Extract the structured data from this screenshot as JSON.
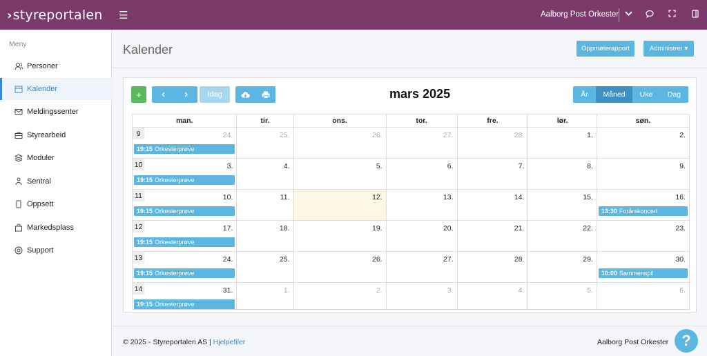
{
  "app": {
    "logo_text": "styreportalen",
    "hamburger": "☰"
  },
  "topbar": {
    "org_name": "Aalborg Post Orkester",
    "dropdown_icon": "chevron-down-icon",
    "icons": [
      "chat-icon",
      "fullscreen-icon",
      "panel-icon"
    ]
  },
  "sidebar": {
    "heading": "Meny",
    "items": [
      {
        "label": "Personer",
        "icon": "users-icon",
        "active": false
      },
      {
        "label": "Kalender",
        "icon": "calendar-icon",
        "active": true
      },
      {
        "label": "Meldingssenter",
        "icon": "envelope-icon",
        "active": false
      },
      {
        "label": "Styrearbeid",
        "icon": "briefcase-icon",
        "active": false
      },
      {
        "label": "Moduler",
        "icon": "layers-icon",
        "active": false
      },
      {
        "label": "Sentral",
        "icon": "network-icon",
        "active": false
      },
      {
        "label": "Oppsett",
        "icon": "mobile-icon",
        "active": false
      },
      {
        "label": "Markedsplass",
        "icon": "shopping-bag-icon",
        "active": false
      },
      {
        "label": "Support",
        "icon": "lifebuoy-icon",
        "active": false
      }
    ]
  },
  "header": {
    "title": "Kalender",
    "attendance_label": "Oppmøterapport",
    "admin_label": "Administrer ▾"
  },
  "toolbar": {
    "add_label": "+",
    "prev_label": "‹",
    "next_label": "›",
    "today_label": "Idag",
    "title": "mars 2025"
  },
  "views": [
    {
      "label": "År",
      "active": false
    },
    {
      "label": "Måned",
      "active": true
    },
    {
      "label": "Uke",
      "active": false
    },
    {
      "label": "Dag",
      "active": false
    }
  ],
  "calendar": {
    "weekdays": [
      "man.",
      "tir.",
      "ons.",
      "tor.",
      "fre.",
      "lør.",
      "søn."
    ],
    "weeks": [
      {
        "week": "9",
        "days": [
          {
            "d": "24.",
            "other": true,
            "event": {
              "time": "19:15",
              "title": "Orkesterprøve"
            }
          },
          {
            "d": "25.",
            "other": true
          },
          {
            "d": "26.",
            "other": true
          },
          {
            "d": "27.",
            "other": true
          },
          {
            "d": "28.",
            "other": true
          },
          {
            "d": "1."
          },
          {
            "d": "2."
          }
        ]
      },
      {
        "week": "10",
        "days": [
          {
            "d": "3.",
            "event": {
              "time": "19:15",
              "title": "Orkesterprøve"
            }
          },
          {
            "d": "4."
          },
          {
            "d": "5."
          },
          {
            "d": "6."
          },
          {
            "d": "7."
          },
          {
            "d": "8."
          },
          {
            "d": "9."
          }
        ]
      },
      {
        "week": "11",
        "days": [
          {
            "d": "10.",
            "event": {
              "time": "19:15",
              "title": "Orkesterprøve"
            }
          },
          {
            "d": "11."
          },
          {
            "d": "12.",
            "today": true
          },
          {
            "d": "13."
          },
          {
            "d": "14."
          },
          {
            "d": "15."
          },
          {
            "d": "16.",
            "event": {
              "time": "13:30",
              "title": "Forårskoncert"
            }
          }
        ]
      },
      {
        "week": "12",
        "days": [
          {
            "d": "17.",
            "event": {
              "time": "19:15",
              "title": "Orkesterprøve"
            }
          },
          {
            "d": "18."
          },
          {
            "d": "19."
          },
          {
            "d": "20."
          },
          {
            "d": "21."
          },
          {
            "d": "22."
          },
          {
            "d": "23."
          }
        ]
      },
      {
        "week": "13",
        "days": [
          {
            "d": "24.",
            "event": {
              "time": "19:15",
              "title": "Orkesterprøve"
            }
          },
          {
            "d": "25."
          },
          {
            "d": "26."
          },
          {
            "d": "27."
          },
          {
            "d": "28."
          },
          {
            "d": "29."
          },
          {
            "d": "30.",
            "event": {
              "time": "10:00",
              "title": "Sammenspil"
            }
          }
        ]
      },
      {
        "week": "14",
        "days": [
          {
            "d": "31.",
            "event": {
              "time": "19:15",
              "title": "Orkesterprøve"
            }
          },
          {
            "d": "1.",
            "other": true
          },
          {
            "d": "2.",
            "other": true
          },
          {
            "d": "3.",
            "other": true
          },
          {
            "d": "4.",
            "other": true
          },
          {
            "d": "5.",
            "other": true
          },
          {
            "d": "6.",
            "other": true
          }
        ]
      }
    ]
  },
  "footer": {
    "copyright": "© 2025 - Styreportalen AS |",
    "help_link": "Hjelpefiler",
    "org_name": "Aalborg Post Orkester"
  },
  "help_button": "?"
}
